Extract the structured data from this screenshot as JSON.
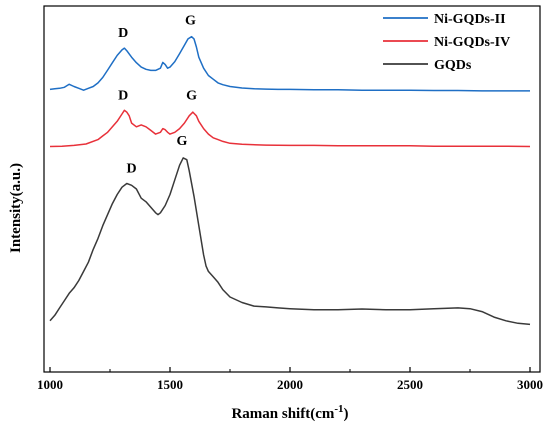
{
  "chart_data": {
    "type": "line",
    "title": "",
    "xlabel": "Raman shift(cm",
    "xlabel_sup": "-1",
    "xlabel_close": ")",
    "ylabel": "Intensity(a.u.)",
    "xlim": [
      1000,
      3000
    ],
    "ylim": [
      0,
      100
    ],
    "xticks": [
      1000,
      1500,
      2000,
      2500,
      3000
    ],
    "grid": false,
    "legend": "top-right",
    "series": [
      {
        "name": "Ni-GQDs-II",
        "color": "#1f6fc5",
        "x": [
          1000,
          1020,
          1040,
          1060,
          1080,
          1100,
          1120,
          1140,
          1160,
          1180,
          1200,
          1220,
          1240,
          1260,
          1280,
          1300,
          1310,
          1320,
          1340,
          1360,
          1380,
          1400,
          1420,
          1440,
          1460,
          1470,
          1480,
          1490,
          1500,
          1520,
          1540,
          1560,
          1575,
          1590,
          1600,
          1610,
          1620,
          1640,
          1660,
          1680,
          1700,
          1720,
          1750,
          1800,
          1850,
          1900,
          1950,
          2000,
          2100,
          2200,
          2300,
          2400,
          2500,
          2600,
          2700,
          2800,
          2900,
          3000
        ],
        "y": [
          77.2,
          77.4,
          77.5,
          77.8,
          78.6,
          78.0,
          77.5,
          77.0,
          77.5,
          78.0,
          79.0,
          80.5,
          82.5,
          84.5,
          86.5,
          88.0,
          88.5,
          87.8,
          86.0,
          84.5,
          83.3,
          82.7,
          82.4,
          82.4,
          83.0,
          84.6,
          84.0,
          83.0,
          83.3,
          84.8,
          87.0,
          89.3,
          91.0,
          91.6,
          91.0,
          88.8,
          86.0,
          83.0,
          81.0,
          80.0,
          79.0,
          78.5,
          78.0,
          77.6,
          77.4,
          77.3,
          77.2,
          77.2,
          77.1,
          77.1,
          77.0,
          77.0,
          77.0,
          76.9,
          76.9,
          76.8,
          76.8,
          76.8
        ]
      },
      {
        "name": "Ni-GQDs-IV",
        "color": "#e8313a",
        "x": [
          1000,
          1050,
          1100,
          1150,
          1200,
          1220,
          1240,
          1260,
          1280,
          1300,
          1310,
          1320,
          1330,
          1340,
          1360,
          1380,
          1400,
          1420,
          1440,
          1460,
          1470,
          1480,
          1490,
          1500,
          1520,
          1540,
          1560,
          1580,
          1595,
          1610,
          1620,
          1640,
          1660,
          1680,
          1700,
          1720,
          1750,
          1800,
          1900,
          2000,
          2100,
          2200,
          2300,
          2400,
          2500,
          2600,
          2700,
          2800,
          2900,
          3000
        ],
        "y": [
          61.6,
          61.7,
          61.9,
          62.3,
          63.5,
          64.5,
          65.5,
          67.0,
          68.5,
          70.5,
          71.5,
          71.0,
          70.0,
          68.0,
          67.0,
          67.5,
          67.0,
          66.0,
          65.0,
          65.5,
          66.5,
          66.2,
          65.5,
          65.0,
          65.5,
          66.5,
          68.0,
          70.0,
          71.0,
          70.0,
          68.5,
          66.5,
          65.0,
          64.0,
          63.5,
          63.0,
          62.5,
          62.2,
          62.0,
          61.9,
          61.9,
          61.8,
          61.8,
          61.8,
          61.8,
          61.7,
          61.7,
          61.7,
          61.7,
          61.6
        ]
      },
      {
        "name": "GQDs",
        "color": "#3a3a3a",
        "x": [
          1000,
          1020,
          1040,
          1060,
          1080,
          1100,
          1120,
          1140,
          1160,
          1180,
          1200,
          1220,
          1240,
          1260,
          1280,
          1300,
          1320,
          1340,
          1360,
          1380,
          1400,
          1420,
          1440,
          1450,
          1460,
          1480,
          1500,
          1520,
          1540,
          1555,
          1570,
          1580,
          1600,
          1620,
          1640,
          1650,
          1660,
          1680,
          1700,
          1720,
          1750,
          1800,
          1850,
          1900,
          1950,
          2000,
          2100,
          2200,
          2300,
          2400,
          2500,
          2600,
          2700,
          2750,
          2800,
          2850,
          2900,
          2950,
          3000
        ],
        "y": [
          14.0,
          15.5,
          17.5,
          19.5,
          21.5,
          23.0,
          25.0,
          27.5,
          30.0,
          33.5,
          36.5,
          40.0,
          43.0,
          46.0,
          48.5,
          50.5,
          51.5,
          51.0,
          50.0,
          47.5,
          46.5,
          45.0,
          43.5,
          43.0,
          43.5,
          45.5,
          48.5,
          52.5,
          56.5,
          58.5,
          58.0,
          55.0,
          48.0,
          40.0,
          32.0,
          29.0,
          27.5,
          26.0,
          24.5,
          22.5,
          20.5,
          19.0,
          18.0,
          17.8,
          17.5,
          17.3,
          17.0,
          17.0,
          17.2,
          17.0,
          17.0,
          17.3,
          17.5,
          17.3,
          16.5,
          15.0,
          14.0,
          13.3,
          13.0
        ]
      }
    ],
    "annotations": [
      {
        "text": "D",
        "x": 1305,
        "y": 91.5
      },
      {
        "text": "G",
        "x": 1585,
        "y": 95
      },
      {
        "text": "D",
        "x": 1305,
        "y": 74.5
      },
      {
        "text": "G",
        "x": 1590,
        "y": 74.5
      },
      {
        "text": "D",
        "x": 1340,
        "y": 54.5
      },
      {
        "text": "G",
        "x": 1550,
        "y": 62
      }
    ]
  }
}
